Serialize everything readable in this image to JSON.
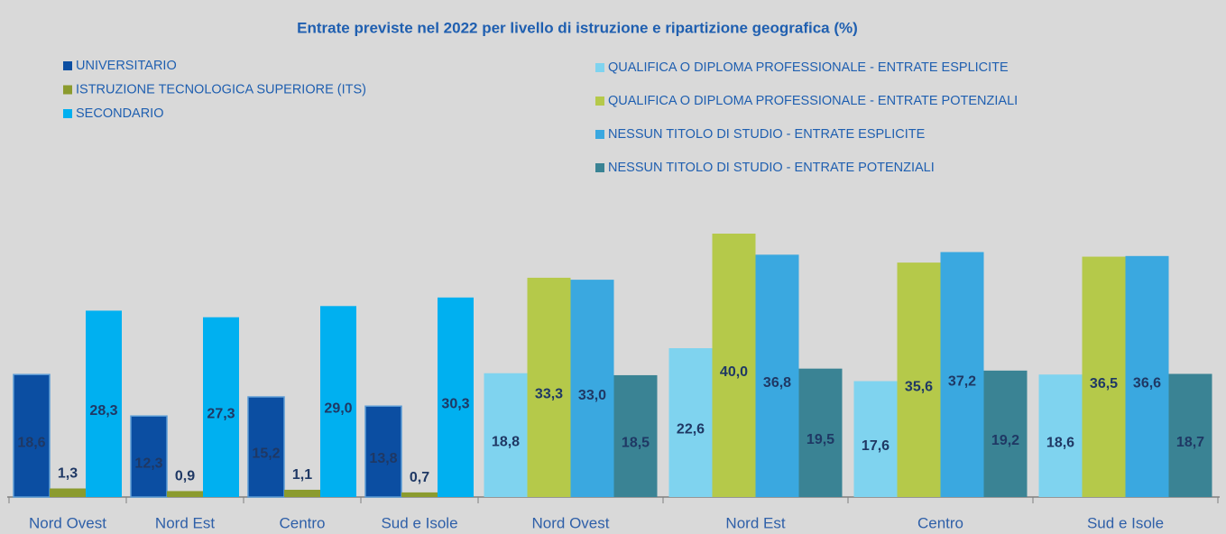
{
  "chart_data": [
    {
      "type": "bar",
      "title": "Entrate previste nel 2022 per livello di istruzione e ripartizione geografica (%)",
      "categories": [
        "Nord Ovest",
        "Nord Est",
        "Centro",
        "Sud e Isole"
      ],
      "series": [
        {
          "name": "UNIVERSITARIO",
          "color": "#0b4ea2",
          "values": [
            18.6,
            12.3,
            15.2,
            13.8
          ],
          "value_labels": [
            "18,6",
            "12,3",
            "15,2",
            "13,8"
          ]
        },
        {
          "name": "ISTRUZIONE TECNOLOGICA SUPERIORE (ITS)",
          "color": "#8b9b2e",
          "values": [
            1.3,
            0.9,
            1.1,
            0.7
          ],
          "value_labels": [
            "1,3",
            "0,9",
            "1,1",
            "0,7"
          ]
        },
        {
          "name": "SECONDARIO",
          "color": "#00b0f0",
          "values": [
            28.3,
            27.3,
            29.0,
            30.3
          ],
          "value_labels": [
            "28,3",
            "27,3",
            "29,0",
            "30,3"
          ]
        }
      ]
    },
    {
      "type": "bar",
      "categories": [
        "Nord Ovest",
        "Nord Est",
        "Centro",
        "Sud e Isole"
      ],
      "series": [
        {
          "name": "QUALIFICA O DIPLOMA PROFESSIONALE - ENTRATE ESPLICITE",
          "color": "#7fd3ef",
          "values": [
            18.8,
            22.6,
            17.6,
            18.6
          ],
          "value_labels": [
            "18,8",
            "22,6",
            "17,6",
            "18,6"
          ]
        },
        {
          "name": "QUALIFICA O DIPLOMA PROFESSIONALE  - ENTRATE POTENZIALI",
          "color": "#b5c94a",
          "values": [
            33.3,
            40.0,
            35.6,
            36.5
          ],
          "value_labels": [
            "33,3",
            "40,0",
            "35,6",
            "36,5"
          ]
        },
        {
          "name": "NESSUN TITOLO DI STUDIO  - ENTRATE ESPLICITE",
          "color": "#3aa8e0",
          "values": [
            33.0,
            36.8,
            37.2,
            36.6
          ],
          "value_labels": [
            "33,0",
            "36,8",
            "37,2",
            "36,6"
          ]
        },
        {
          "name": "NESSUN TITOLO DI STUDIO  - ENTRATE POTENZIALI",
          "color": "#3a8394",
          "values": [
            18.5,
            19.5,
            19.2,
            18.7
          ],
          "value_labels": [
            "18,5",
            "19,5",
            "19,2",
            "18,7"
          ]
        }
      ]
    }
  ]
}
